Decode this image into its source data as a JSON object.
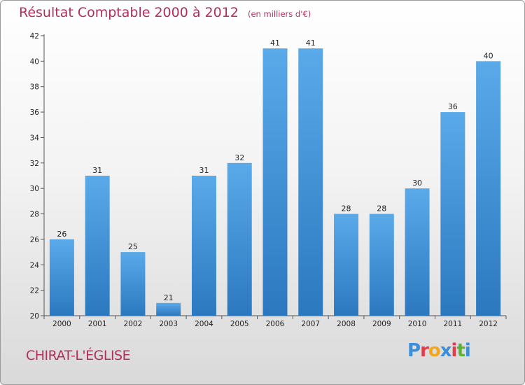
{
  "chart_data": {
    "type": "bar",
    "title": "Résultat Comptable 2000 à 2012",
    "subtitle": "(en milliers d'€)",
    "categories": [
      "2000",
      "2001",
      "2002",
      "2003",
      "2004",
      "2005",
      "2006",
      "2007",
      "2008",
      "2009",
      "2010",
      "2011",
      "2012"
    ],
    "values": [
      26,
      31,
      25,
      21,
      31,
      32,
      41,
      41,
      28,
      28,
      30,
      36,
      40
    ],
    "ylim": [
      20,
      42
    ],
    "yticks": [
      20,
      22,
      24,
      26,
      28,
      30,
      32,
      34,
      36,
      38,
      40,
      42
    ],
    "grid": false,
    "bar_color": "#3a8fd6"
  },
  "footer": {
    "town": "CHIRAT-L'ÉGLISE",
    "logo_letters": [
      {
        "char": "P",
        "color": "#3b8ed8"
      },
      {
        "char": "r",
        "color": "#e23b4b"
      },
      {
        "char": "o",
        "color": "#f2a81d"
      },
      {
        "char": "x",
        "color": "#3b8ed8"
      },
      {
        "char": "i",
        "color": "#e23b4b"
      },
      {
        "char": "t",
        "color": "#5bb431"
      },
      {
        "char": "i",
        "color": "#3b8ed8"
      }
    ]
  }
}
